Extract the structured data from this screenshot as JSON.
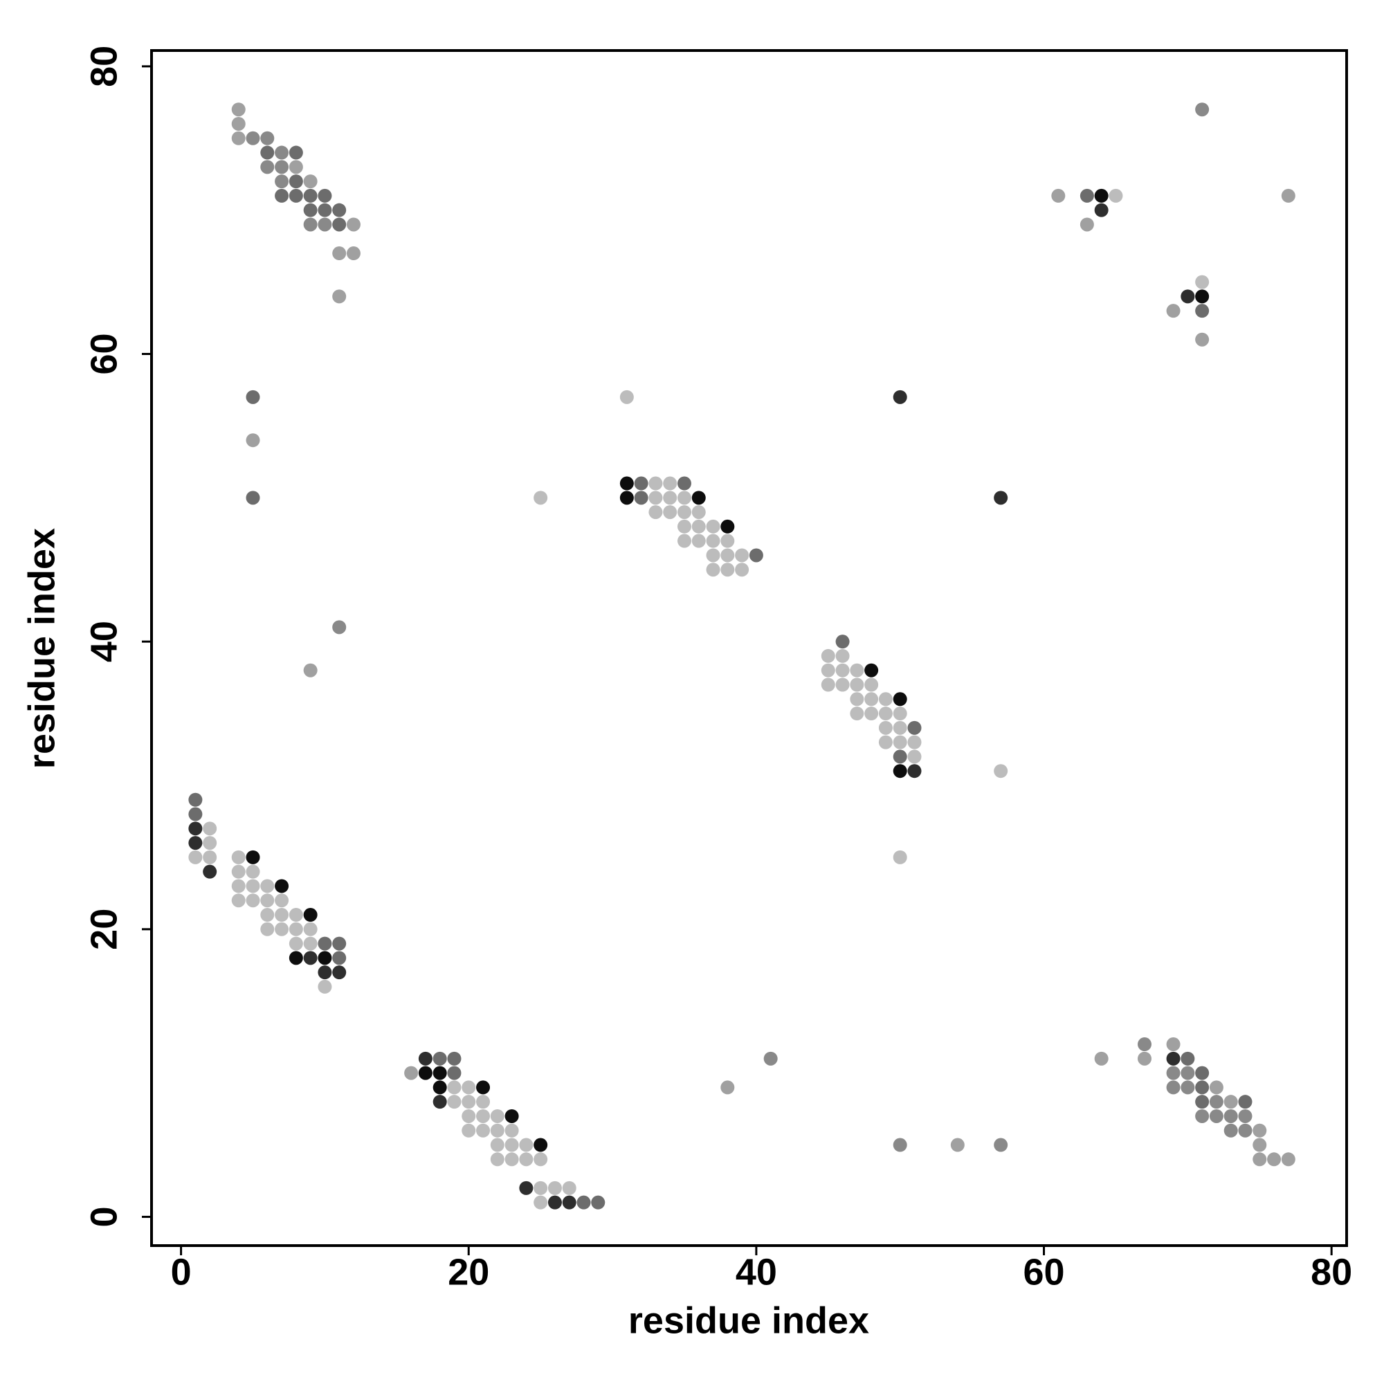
{
  "chart_data": {
    "type": "scatter",
    "xlabel": "residue index",
    "ylabel": "residue index",
    "xlim": [
      -2.05,
      81.05
    ],
    "ylim": [
      -2,
      81.1
    ],
    "xticks": [
      0,
      20,
      40,
      60,
      80
    ],
    "yticks": [
      0,
      20,
      40,
      60,
      80
    ],
    "series": [
      {
        "color": "#bcbcbc",
        "x": [
          65,
          71,
          31,
          25,
          33,
          34,
          33,
          34,
          35,
          33,
          34,
          35,
          36,
          35,
          36,
          37,
          35,
          36,
          37,
          38,
          37,
          38,
          39,
          37,
          38,
          39,
          45,
          46,
          45,
          46,
          47,
          45,
          46,
          47,
          48,
          47,
          48,
          49,
          47,
          48,
          49,
          50,
          49,
          50,
          49,
          50,
          51,
          51,
          57,
          50,
          2,
          2,
          1,
          2,
          4,
          4,
          5,
          4,
          5,
          6,
          4,
          5,
          6,
          7,
          6,
          7,
          8,
          6,
          7,
          8,
          9,
          8,
          9,
          10,
          19,
          20,
          19,
          20,
          21,
          20,
          21,
          22,
          20,
          21,
          22,
          23,
          22,
          23,
          24,
          22,
          23,
          24,
          25,
          25,
          26,
          27,
          25
        ],
        "y": [
          71,
          65,
          57,
          50,
          51,
          51,
          50,
          50,
          50,
          49,
          49,
          49,
          49,
          48,
          48,
          48,
          47,
          47,
          47,
          47,
          46,
          46,
          46,
          45,
          45,
          45,
          39,
          39,
          38,
          38,
          38,
          37,
          37,
          37,
          37,
          36,
          36,
          36,
          35,
          35,
          35,
          35,
          34,
          34,
          33,
          33,
          33,
          32,
          31,
          25,
          27,
          26,
          25,
          25,
          25,
          24,
          24,
          23,
          23,
          23,
          22,
          22,
          22,
          22,
          21,
          21,
          21,
          20,
          20,
          20,
          20,
          19,
          19,
          16,
          9,
          9,
          8,
          8,
          8,
          7,
          7,
          7,
          6,
          6,
          6,
          6,
          5,
          5,
          5,
          4,
          4,
          4,
          4,
          2,
          2,
          2,
          1
        ]
      },
      {
        "color": "#a0a0a0",
        "x": [
          4,
          4,
          4,
          8,
          9,
          12,
          11,
          12,
          11,
          5,
          9,
          61,
          63,
          77,
          69,
          71,
          16,
          38,
          54,
          69,
          64,
          67,
          72,
          73,
          75,
          75,
          75,
          76,
          77
        ],
        "y": [
          77,
          76,
          75,
          73,
          72,
          69,
          67,
          67,
          64,
          54,
          38,
          71,
          69,
          71,
          63,
          61,
          10,
          9,
          5,
          12,
          11,
          11,
          9,
          8,
          6,
          5,
          4,
          4,
          4
        ]
      },
      {
        "color": "#898989",
        "x": [
          5,
          6,
          7,
          6,
          7,
          7,
          9,
          10,
          11,
          71,
          41,
          50,
          57,
          67,
          69,
          70,
          69,
          70,
          72,
          71,
          72,
          73,
          74,
          73,
          74
        ],
        "y": [
          75,
          75,
          74,
          73,
          73,
          72,
          69,
          69,
          41,
          77,
          11,
          5,
          5,
          12,
          10,
          10,
          9,
          9,
          8,
          7,
          7,
          7,
          7,
          6,
          6
        ]
      },
      {
        "color": "#6c6c6c",
        "x": [
          6,
          8,
          8,
          7,
          8,
          9,
          10,
          9,
          10,
          11,
          11,
          5,
          5,
          63,
          71,
          32,
          35,
          32,
          40,
          46,
          51,
          50,
          1,
          1,
          10,
          11,
          11,
          18,
          19,
          19,
          28,
          29,
          70,
          71,
          71,
          71,
          74
        ],
        "y": [
          74,
          74,
          72,
          71,
          71,
          71,
          71,
          70,
          70,
          70,
          69,
          57,
          50,
          71,
          63,
          51,
          51,
          50,
          46,
          40,
          34,
          32,
          29,
          28,
          19,
          19,
          18,
          11,
          11,
          10,
          1,
          1,
          11,
          10,
          9,
          8,
          8
        ]
      },
      {
        "color": "#2e2e2e",
        "x": [
          64,
          70,
          50,
          57,
          51,
          1,
          1,
          2,
          9,
          10,
          11,
          17,
          18,
          24,
          26,
          27,
          69
        ],
        "y": [
          70,
          64,
          57,
          50,
          31,
          27,
          26,
          24,
          18,
          17,
          17,
          11,
          8,
          2,
          1,
          1,
          11
        ]
      },
      {
        "color": "#0d0d0d",
        "x": [
          64,
          71,
          31,
          31,
          36,
          38,
          48,
          50,
          50,
          5,
          7,
          9,
          8,
          10,
          17,
          18,
          18,
          21,
          23,
          25
        ],
        "y": [
          71,
          64,
          51,
          50,
          50,
          48,
          38,
          36,
          31,
          25,
          23,
          21,
          18,
          18,
          10,
          10,
          9,
          9,
          7,
          5
        ]
      }
    ]
  }
}
